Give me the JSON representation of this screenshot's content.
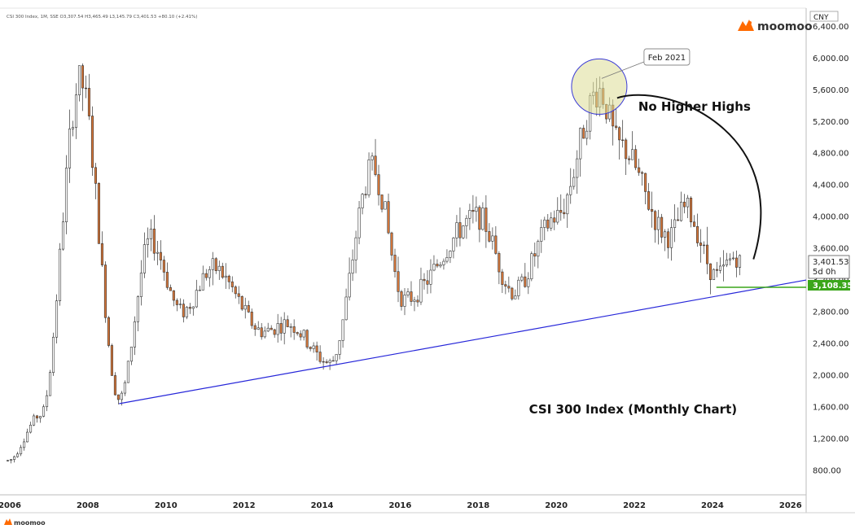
{
  "header": {
    "ohlc_text": "CSI 300 Index, 1M, SSE  O3,307.54  H3,465.49  L3,145.79  C3,401.53  +80.10 (+2.41%)",
    "currency": "CNY"
  },
  "brand": {
    "name": "moomoo",
    "accent": "#ff6a00"
  },
  "footer": {
    "brand": "moomoo"
  },
  "price_label": {
    "value": "3,401.53",
    "countdown": "5d 0h"
  },
  "support_label": {
    "value": "3,108.35",
    "color": "#3aa61a"
  },
  "annotations": {
    "peak": "Feb 2021",
    "no_higher_highs": "No Higher Highs",
    "caption": "CSI 300 Index (Monthly Chart)"
  },
  "chart_data": {
    "type": "candlestick",
    "title": "CSI 300 Index (Monthly Chart)",
    "interval": "1M",
    "xlim": [
      2005.75,
      2026.4
    ],
    "ylim": [
      490,
      6630
    ],
    "x_ticks": [
      "2006",
      "2008",
      "2010",
      "2012",
      "2014",
      "2016",
      "2018",
      "2020",
      "2022",
      "2024",
      "2026"
    ],
    "y_ticks": [
      "800.00",
      "1,200.00",
      "1,600.00",
      "2,000.00",
      "2,400.00",
      "2,800.00",
      "3,200.00",
      "3,600.00",
      "4,000.00",
      "4,400.00",
      "4,800.00",
      "5,200.00",
      "5,600.00",
      "6,000.00",
      "6,400.00"
    ],
    "up_color": "#ffffff",
    "down_color": "#d9783a",
    "key_points": [
      {
        "date": "2005.95",
        "close": 920
      },
      {
        "date": "2006.8",
        "close": 1500
      },
      {
        "date": "2007.8",
        "close": 5700
      },
      {
        "date": "2008.8",
        "close": 1700
      },
      {
        "date": "2009.6",
        "close": 3700
      },
      {
        "date": "2010.4",
        "close": 2800
      },
      {
        "date": "2011.2",
        "close": 3350
      },
      {
        "date": "2012.5",
        "close": 2550
      },
      {
        "date": "2013.1",
        "close": 2650
      },
      {
        "date": "2014.2",
        "close": 2150
      },
      {
        "date": "2015.3",
        "close": 4600
      },
      {
        "date": "2016.1",
        "close": 2950
      },
      {
        "date": "2018.0",
        "close": 4000
      },
      {
        "date": "2018.9",
        "close": 3050
      },
      {
        "date": "2020.0",
        "close": 4000
      },
      {
        "date": "2021.1",
        "close": 5600
      },
      {
        "date": "2021.6",
        "close": 4900
      },
      {
        "date": "2022.9",
        "close": 3750
      },
      {
        "date": "2023.3",
        "close": 4100
      },
      {
        "date": "2024.1",
        "close": 3250
      },
      {
        "date": "2024.6",
        "close": 3500
      },
      {
        "date": "2024.75",
        "close": 3401.53
      }
    ],
    "last_close": 3401.53,
    "support_level": 3108.35,
    "trendline": {
      "from": [
        2008.8,
        1640
      ],
      "to": [
        2026.4,
        3200
      ]
    },
    "horizontal_line": {
      "from": 2024.1,
      "to": 2026.4,
      "value": 3108.35
    },
    "highlight_circle": {
      "date": 2021.1,
      "value": 5640,
      "label": "Feb 2021"
    }
  }
}
